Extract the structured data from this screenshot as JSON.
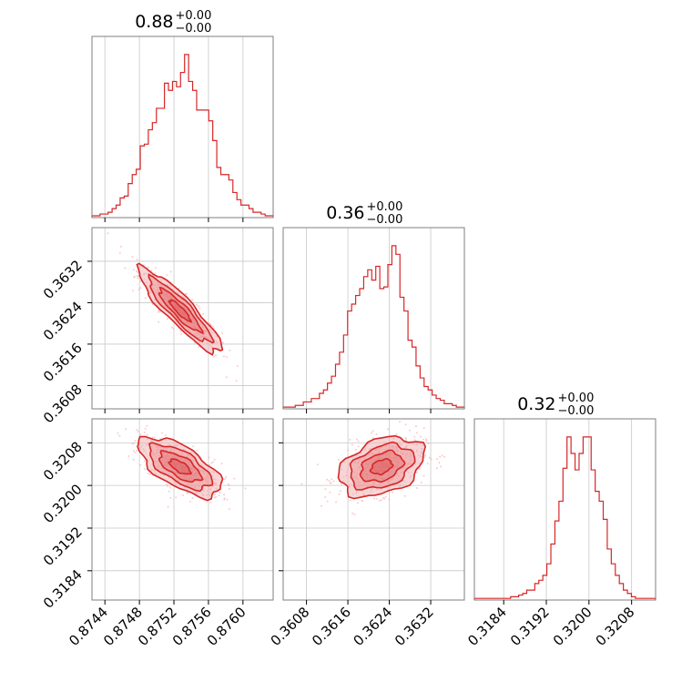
{
  "chart_data": {
    "type": "corner",
    "color": "#d62728",
    "grid": true,
    "parameters": [
      {
        "title": {
          "value": "0.88",
          "plus": "+0.00",
          "minus": "−0.00"
        },
        "range": [
          0.87425,
          0.87635
        ],
        "ticks": [
          "0.8744",
          "0.8748",
          "0.8752",
          "0.8756",
          "0.8760"
        ],
        "tick_values": [
          0.8744,
          0.8748,
          0.8752,
          0.8756,
          0.876
        ]
      },
      {
        "title": {
          "value": "0.36",
          "plus": "+0.00",
          "minus": "−0.00"
        },
        "range": [
          0.36035,
          0.36385
        ],
        "ticks": [
          "0.3608",
          "0.3616",
          "0.3624",
          "0.3632"
        ],
        "tick_values": [
          0.3608,
          0.3616,
          0.3624,
          0.3632
        ]
      },
      {
        "title": {
          "value": "0.32",
          "plus": "+0.00",
          "minus": "−0.00"
        },
        "range": [
          0.31785,
          0.32125
        ],
        "ticks": [
          "0.3184",
          "0.3192",
          "0.3200",
          "0.3208"
        ],
        "tick_values": [
          0.3184,
          0.3192,
          0.32,
          0.3208
        ]
      }
    ],
    "histograms": [
      [
        1,
        1,
        2,
        2,
        3,
        5,
        7,
        11,
        12,
        19,
        24,
        27,
        40,
        41,
        49,
        53,
        61,
        61,
        75,
        71,
        76,
        73,
        81,
        91,
        76,
        71,
        60,
        60,
        60,
        54,
        43,
        28,
        24,
        24,
        21,
        14,
        10,
        7,
        7,
        5,
        3,
        3,
        2,
        1,
        1
      ],
      [
        1,
        1,
        1,
        2,
        2,
        4,
        4,
        6,
        6,
        9,
        11,
        15,
        19,
        26,
        33,
        43,
        57,
        61,
        66,
        70,
        77,
        81,
        75,
        83,
        70,
        71,
        84,
        95,
        90,
        65,
        57,
        40,
        36,
        25,
        18,
        13,
        11,
        8,
        6,
        5,
        3,
        3,
        2,
        1,
        1
      ],
      [
        1,
        1,
        1,
        1,
        1,
        1,
        1,
        1,
        1,
        2,
        2,
        3,
        4,
        6,
        6,
        10,
        12,
        15,
        22,
        34,
        48,
        60,
        80,
        99,
        89,
        79,
        89,
        99,
        99,
        79,
        66,
        60,
        49,
        31,
        22,
        15,
        10,
        6,
        4,
        2,
        1,
        1,
        1,
        1,
        1
      ]
    ],
    "covariances": {
      "1_0": {
        "mean": [
          0.87527,
          0.36225
        ],
        "sd": [
          0.00024,
          0.00041
        ],
        "rho": -0.9
      },
      "2_0": {
        "mean": [
          0.87527,
          0.32035
        ],
        "sd": [
          0.00024,
          0.00028
        ],
        "rho": -0.65
      },
      "2_1": {
        "mean": [
          0.36225,
          0.32035
        ],
        "sd": [
          0.00041,
          0.00028
        ],
        "rho": 0.35
      }
    }
  }
}
